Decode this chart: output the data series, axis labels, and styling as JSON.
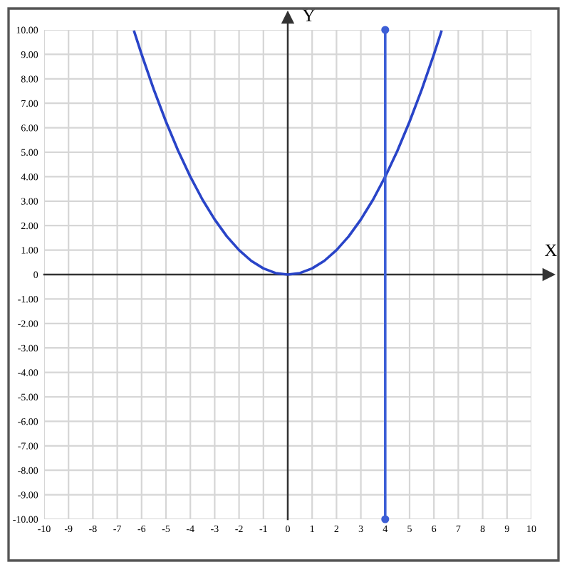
{
  "chart_data": {
    "type": "line",
    "xlabel": "X",
    "ylabel": "Y",
    "xlim": [
      -10,
      10
    ],
    "ylim": [
      -10,
      10
    ],
    "xticks": [
      -10,
      -9,
      -8,
      -7,
      -6,
      -5,
      -4,
      -3,
      -2,
      -1,
      0,
      1,
      2,
      3,
      4,
      5,
      6,
      7,
      8,
      9,
      10
    ],
    "yticks": [
      {
        "value": -10,
        "label": "-10.00"
      },
      {
        "value": -9,
        "label": "-9.00"
      },
      {
        "value": -8,
        "label": "-8.00"
      },
      {
        "value": -7,
        "label": "-7.00"
      },
      {
        "value": -6,
        "label": "-6.00"
      },
      {
        "value": -5,
        "label": "-5.00"
      },
      {
        "value": -4,
        "label": "-4.00"
      },
      {
        "value": -3,
        "label": "-3.00"
      },
      {
        "value": -2,
        "label": "-2.00"
      },
      {
        "value": -1,
        "label": "-1.00"
      },
      0,
      {
        "value": 1,
        "label": "1.00"
      },
      {
        "value": 2,
        "label": "2.00"
      },
      {
        "value": 3,
        "label": "3.00"
      },
      {
        "value": 4,
        "label": "4.00"
      },
      {
        "value": 5,
        "label": "5.00"
      },
      {
        "value": 6,
        "label": "6.00"
      },
      {
        "value": 7,
        "label": "7.00"
      },
      {
        "value": 8,
        "label": "8.00"
      },
      {
        "value": 9,
        "label": "9.00"
      },
      {
        "value": 10,
        "label": "10.00"
      }
    ],
    "grid": true,
    "series": [
      {
        "color": "#2944c8",
        "marker": "none",
        "x": [
          -6.3,
          -6,
          -5.5,
          -5,
          -4.5,
          -4,
          -3.5,
          -3,
          -2.5,
          -2,
          -1.5,
          -1,
          -0.5,
          0,
          0.5,
          1,
          1.5,
          2,
          2.5,
          3,
          3.5,
          4,
          4.5,
          5,
          5.5,
          6,
          6.3
        ],
        "values": [
          9.92,
          9,
          7.56,
          6.25,
          5.06,
          4,
          3.06,
          2.25,
          1.56,
          1,
          0.56,
          0.25,
          0.06,
          0,
          0.06,
          0.25,
          0.56,
          1,
          1.56,
          2.25,
          3.06,
          4,
          5.06,
          6.25,
          7.56,
          9,
          9.92
        ]
      },
      {
        "color": "#3d5fd6",
        "marker": "circle",
        "x": [
          4,
          4
        ],
        "values": [
          -10,
          10
        ]
      }
    ]
  }
}
